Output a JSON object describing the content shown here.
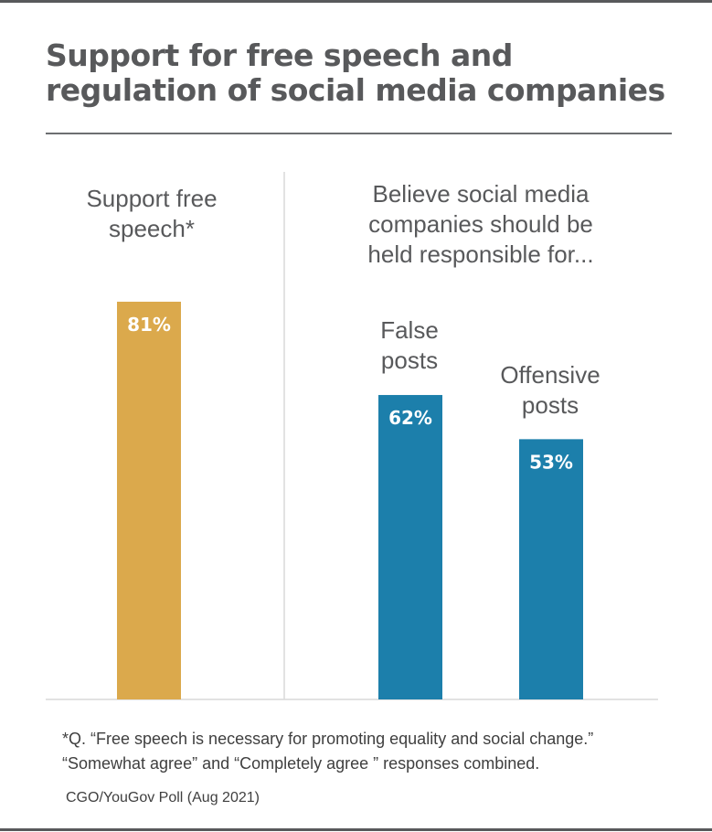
{
  "title_line1": "Support for free speech and",
  "title_line2": "regulation of social media companies",
  "footnote_line1": "*Q. “Free speech is necessary for promoting equality and social change.”",
  "footnote_line2": "“Somewhat agree” and “Completely agree ” responses combined.",
  "source": "CGO/YouGov Poll (Aug 2021)",
  "colors": {
    "gold": "#dba94c",
    "blue": "#1c7fab",
    "text": "#58595b"
  },
  "chart_data": {
    "type": "bar",
    "value_unit": "%",
    "ylim": [
      0,
      100
    ],
    "grid": false,
    "groups": [
      {
        "heading": [
          "Support free",
          "speech*"
        ],
        "bars": [
          {
            "label": [],
            "value": 81,
            "value_label": "81%",
            "color": "#dba94c"
          }
        ]
      },
      {
        "heading": [
          "Believe social media",
          "companies should be",
          "held responsible for..."
        ],
        "bars": [
          {
            "label": [
              "False",
              "posts"
            ],
            "value": 62,
            "value_label": "62%",
            "color": "#1c7fab"
          },
          {
            "label": [
              "Offensive",
              "posts"
            ],
            "value": 53,
            "value_label": "53%",
            "color": "#1c7fab"
          }
        ]
      }
    ]
  }
}
